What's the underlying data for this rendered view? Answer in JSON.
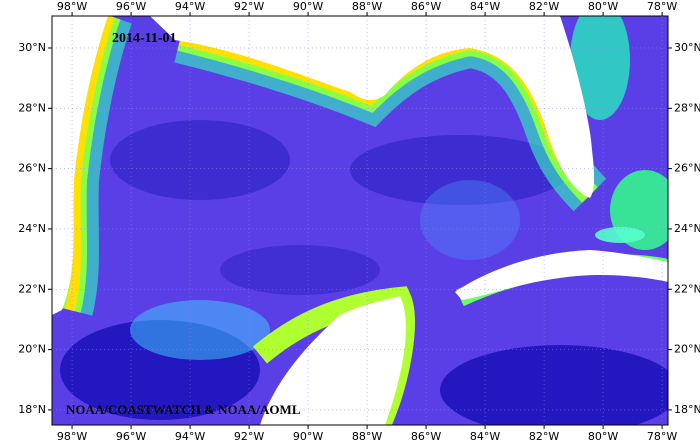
{
  "map": {
    "date": "2014-11-01",
    "credit": "NOAA/COASTWATCH & NOAA/AOML",
    "lonlim": [
      -98.68,
      -77.8
    ],
    "latlim": [
      17.5,
      31.06
    ],
    "lon_ticks": [
      {
        "value": -98,
        "label": "98°W"
      },
      {
        "value": -96,
        "label": "96°W"
      },
      {
        "value": -94,
        "label": "94°W"
      },
      {
        "value": -92,
        "label": "92°W"
      },
      {
        "value": -90,
        "label": "90°W"
      },
      {
        "value": -88,
        "label": "88°W"
      },
      {
        "value": -86,
        "label": "86°W"
      },
      {
        "value": -84,
        "label": "84°W"
      },
      {
        "value": -82,
        "label": "82°W"
      },
      {
        "value": -80,
        "label": "80°W"
      },
      {
        "value": -78,
        "label": "78°W"
      }
    ],
    "lat_ticks": [
      {
        "value": 18,
        "label": "18°N"
      },
      {
        "value": 20,
        "label": "20°N"
      },
      {
        "value": 22,
        "label": "22°N"
      },
      {
        "value": 24,
        "label": "24°N"
      },
      {
        "value": 26,
        "label": "26°N"
      },
      {
        "value": 28,
        "label": "28°N"
      },
      {
        "value": 30,
        "label": "30°N"
      }
    ]
  }
}
